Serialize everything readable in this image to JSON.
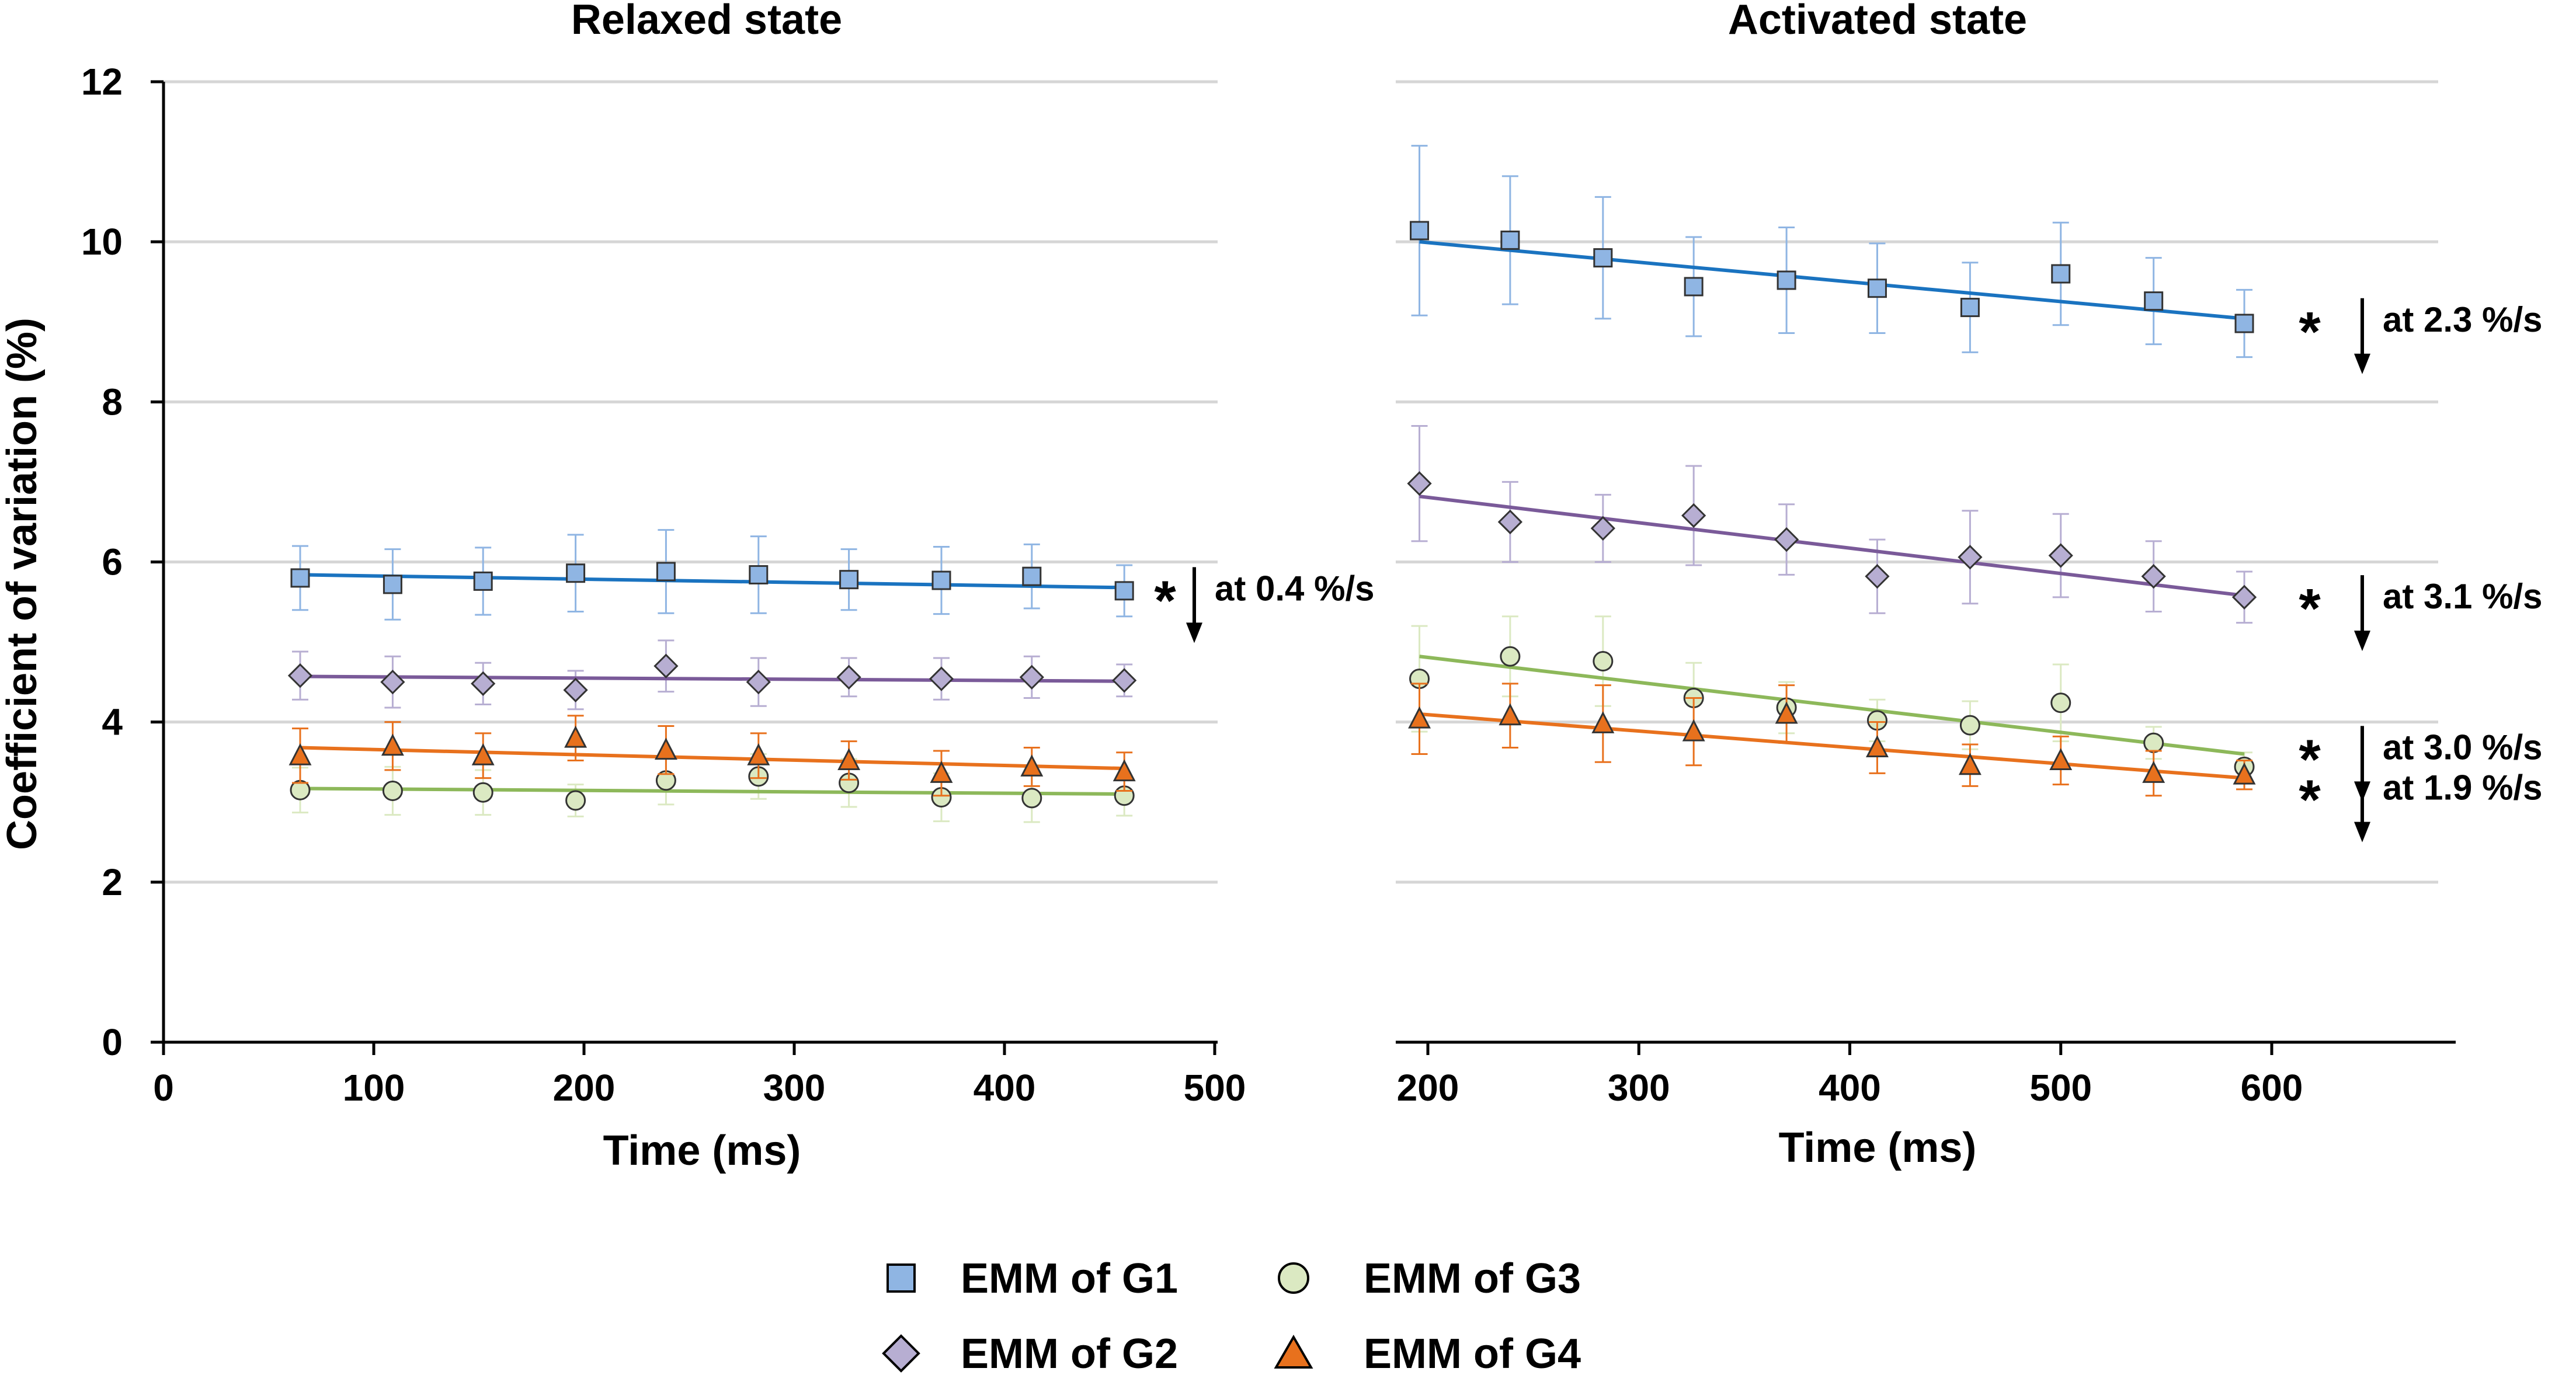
{
  "chart_data": [
    {
      "type": "scatter",
      "title": "Relaxed state",
      "xlabel": "Time (ms)",
      "ylabel": "Coefficient of variation (%)",
      "xlim": [
        0,
        500
      ],
      "ylim": [
        0,
        12
      ],
      "xticks": [
        "0",
        "100",
        "200",
        "300",
        "400",
        "500"
      ],
      "yticks": [
        "0",
        "2",
        "4",
        "6",
        "8",
        "10",
        "12"
      ],
      "x": [
        65,
        109,
        152,
        196,
        239,
        283,
        326,
        370,
        413,
        457
      ],
      "series": [
        {
          "name": "EMM of G1",
          "values": [
            5.8,
            5.72,
            5.76,
            5.86,
            5.88,
            5.84,
            5.78,
            5.77,
            5.82,
            5.64
          ],
          "err": [
            0.4,
            0.44,
            0.42,
            0.48,
            0.52,
            0.48,
            0.38,
            0.42,
            0.4,
            0.32
          ],
          "fit": [
            5.84,
            5.68
          ]
        },
        {
          "name": "EMM of G2",
          "values": [
            4.58,
            4.5,
            4.48,
            4.4,
            4.7,
            4.5,
            4.56,
            4.54,
            4.56,
            4.52
          ],
          "err": [
            0.3,
            0.32,
            0.26,
            0.24,
            0.32,
            0.3,
            0.24,
            0.26,
            0.26,
            0.2
          ],
          "fit": [
            4.57,
            4.51
          ]
        },
        {
          "name": "EMM of G3",
          "values": [
            3.15,
            3.14,
            3.12,
            3.02,
            3.27,
            3.32,
            3.24,
            3.06,
            3.05,
            3.08
          ],
          "err": [
            0.28,
            0.3,
            0.28,
            0.2,
            0.3,
            0.28,
            0.3,
            0.3,
            0.3,
            0.25
          ],
          "fit": [
            3.17,
            3.1
          ]
        },
        {
          "name": "EMM of G4",
          "values": [
            3.58,
            3.7,
            3.58,
            3.8,
            3.65,
            3.58,
            3.52,
            3.36,
            3.44,
            3.38
          ],
          "err": [
            0.34,
            0.3,
            0.28,
            0.28,
            0.3,
            0.28,
            0.24,
            0.28,
            0.24,
            0.24
          ],
          "fit": [
            3.68,
            3.42
          ]
        }
      ],
      "annotations": [
        {
          "series": "EMM of G1",
          "star": "*",
          "text": "at 0.4 %/s"
        }
      ]
    },
    {
      "type": "scatter",
      "title": "Activated state",
      "xlabel": "Time (ms)",
      "ylabel": "",
      "xlim": [
        175,
        660
      ],
      "ylim": [
        0,
        12
      ],
      "xticks": [
        "200",
        "300",
        "400",
        "500",
        "600"
      ],
      "x": [
        196,
        239,
        283,
        326,
        370,
        413,
        457,
        500,
        544,
        587
      ],
      "series": [
        {
          "name": "EMM of G1",
          "values": [
            10.14,
            10.02,
            9.8,
            9.44,
            9.52,
            9.42,
            9.18,
            9.6,
            9.26,
            8.98
          ],
          "err": [
            1.06,
            0.8,
            0.76,
            0.62,
            0.66,
            0.56,
            0.56,
            0.64,
            0.54,
            0.42
          ],
          "fit": [
            10.0,
            9.04
          ]
        },
        {
          "name": "EMM of G2",
          "values": [
            6.98,
            6.5,
            6.42,
            6.58,
            6.28,
            5.82,
            6.06,
            6.08,
            5.82,
            5.56
          ],
          "err": [
            0.72,
            0.5,
            0.42,
            0.62,
            0.44,
            0.46,
            0.58,
            0.52,
            0.44,
            0.32
          ],
          "fit": [
            6.82,
            5.58
          ]
        },
        {
          "name": "EMM of G3",
          "values": [
            4.54,
            4.82,
            4.76,
            4.3,
            4.18,
            4.02,
            3.96,
            4.24,
            3.74,
            3.44
          ],
          "err": [
            0.66,
            0.5,
            0.56,
            0.44,
            0.32,
            0.26,
            0.3,
            0.48,
            0.2,
            0.18
          ],
          "fit": [
            4.82,
            3.6
          ]
        },
        {
          "name": "EMM of G4",
          "values": [
            4.04,
            4.08,
            3.98,
            3.88,
            4.1,
            3.68,
            3.46,
            3.52,
            3.36,
            3.34
          ],
          "err": [
            0.44,
            0.4,
            0.48,
            0.42,
            0.36,
            0.32,
            0.26,
            0.3,
            0.28,
            0.18
          ],
          "fit": [
            4.1,
            3.3
          ]
        }
      ],
      "annotations": [
        {
          "series": "EMM of G1",
          "star": "*",
          "text": "at 2.3 %/s"
        },
        {
          "series": "EMM of G2",
          "star": "*",
          "text": "at 3.1 %/s"
        },
        {
          "series": "EMM of G3",
          "star": "*",
          "text": "at 3.0 %/s"
        },
        {
          "series": "EMM of G4",
          "star": "*",
          "text": "at 1.9 %/s"
        }
      ]
    }
  ],
  "legend": [
    {
      "label": "EMM of G1",
      "marker": "square-icon"
    },
    {
      "label": "EMM of G3",
      "marker": "circle-icon"
    },
    {
      "label": "EMM of G2",
      "marker": "diamond-icon"
    },
    {
      "label": "EMM of G4",
      "marker": "triangle-icon"
    }
  ],
  "colors": {
    "g1_fill": "#8fb5e3",
    "g1_line": "#1a73c0",
    "g2_fill": "#b7aed2",
    "g2_line": "#7a5a99",
    "g3_fill": "#dbe9c2",
    "g3_line": "#8db85a",
    "g4_fill": "#e8711d",
    "g4_line": "#e8711d",
    "grid": "#d6d6d6"
  }
}
